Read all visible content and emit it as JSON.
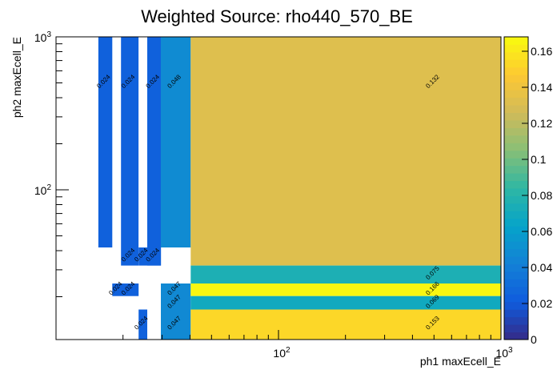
{
  "chart_data": {
    "type": "heatmap",
    "title": "Weighted Source: rho440_570_BE",
    "xlabel": "ph1 maxEcell_E",
    "ylabel": "ph2 maxEcell_E",
    "x_scale": "log",
    "y_scale": "log",
    "xlim": [
      10,
      1000
    ],
    "ylim": [
      10.5,
      1000
    ],
    "x_tick_labels": [
      "10^2",
      "10^3"
    ],
    "y_tick_labels": [
      "10^2",
      "10^3"
    ],
    "colorbar": {
      "range": [
        0,
        0.168
      ],
      "ticks": [
        "0",
        "0.02",
        "0.04",
        "0.06",
        "0.08",
        "0.1",
        "0.12",
        "0.14",
        "0.16"
      ]
    },
    "cells": [
      {
        "x0": 15.5,
        "x1": 17.9,
        "y0": 42,
        "y1": 1000,
        "value": 0.024,
        "label": "0.024"
      },
      {
        "x0": 19.6,
        "x1": 23.5,
        "y0": 42,
        "y1": 1000,
        "value": 0.024,
        "label": "0.024"
      },
      {
        "x0": 25.7,
        "x1": 29.6,
        "y0": 42,
        "y1": 1000,
        "value": 0.024,
        "label": "0.024"
      },
      {
        "x0": 29.6,
        "x1": 40.3,
        "y0": 42,
        "y1": 1000,
        "value": 0.048,
        "label": "0.048"
      },
      {
        "x0": 40.3,
        "x1": 1000,
        "y0": 32,
        "y1": 1000,
        "value": 0.132,
        "label": "0.132"
      },
      {
        "x0": 19.6,
        "x1": 23.5,
        "y0": 32,
        "y1": 42,
        "value": 0.024,
        "label": "0.024"
      },
      {
        "x0": 23.5,
        "x1": 29.6,
        "y0": 32,
        "y1": 42,
        "value": 0.024,
        "label": "0.024"
      },
      {
        "x0": 25.7,
        "x1": 29.6,
        "y0": 32,
        "y1": 42,
        "value": 0.024,
        "label": "0.024"
      },
      {
        "x0": 40.3,
        "x1": 1000,
        "y0": 24.4,
        "y1": 32,
        "value": 0.075,
        "label": "0.075"
      },
      {
        "x0": 17.9,
        "x1": 23.5,
        "y0": 20.2,
        "y1": 24.4,
        "value": 0.024,
        "label": "0.024"
      },
      {
        "x0": 29.6,
        "x1": 40.3,
        "y0": 16.5,
        "y1": 24.4,
        "value": 0.047,
        "label": "0.047"
      },
      {
        "x0": 40.3,
        "x1": 1000,
        "y0": 20.2,
        "y1": 24.4,
        "value": 0.166,
        "label": "0.166"
      },
      {
        "x0": 40.3,
        "x1": 1000,
        "y0": 16.5,
        "y1": 20.2,
        "value": 0.069,
        "label": "0.069"
      },
      {
        "x0": 23.5,
        "x1": 25.7,
        "y0": 10.5,
        "y1": 16.5,
        "value": 0.024,
        "label": "0.024"
      },
      {
        "x0": 29.6,
        "x1": 40.3,
        "y0": 10.5,
        "y1": 16.5,
        "value": 0.047,
        "label": "0.047"
      },
      {
        "x0": 40.3,
        "x1": 1000,
        "y0": 10.5,
        "y1": 16.5,
        "value": 0.153,
        "label": "0.153"
      }
    ],
    "labels": [
      {
        "x": 16.6,
        "y": 500,
        "text": "0.024"
      },
      {
        "x": 21.4,
        "y": 500,
        "text": "0.024"
      },
      {
        "x": 27.6,
        "y": 500,
        "text": "0.024"
      },
      {
        "x": 34.5,
        "y": 500,
        "text": "0.048"
      },
      {
        "x": 500,
        "y": 500,
        "text": "0.132"
      },
      {
        "x": 21.4,
        "y": 36.7,
        "text": "0.024"
      },
      {
        "x": 24.5,
        "y": 36.7,
        "text": "0.024"
      },
      {
        "x": 27.6,
        "y": 36.7,
        "text": "0.024"
      },
      {
        "x": 500,
        "y": 28,
        "text": "0.075"
      },
      {
        "x": 18.8,
        "y": 22.2,
        "text": "0.024"
      },
      {
        "x": 21.4,
        "y": 22.2,
        "text": "0.024"
      },
      {
        "x": 34.5,
        "y": 22.2,
        "text": "0.047"
      },
      {
        "x": 500,
        "y": 22.2,
        "text": "0.166"
      },
      {
        "x": 34.5,
        "y": 18.2,
        "text": "0.047"
      },
      {
        "x": 500,
        "y": 18.2,
        "text": "0.069"
      },
      {
        "x": 24.5,
        "y": 13.2,
        "text": "0.024"
      },
      {
        "x": 34.5,
        "y": 13.2,
        "text": "0.047"
      },
      {
        "x": 500,
        "y": 13.2,
        "text": "0.153"
      }
    ]
  }
}
